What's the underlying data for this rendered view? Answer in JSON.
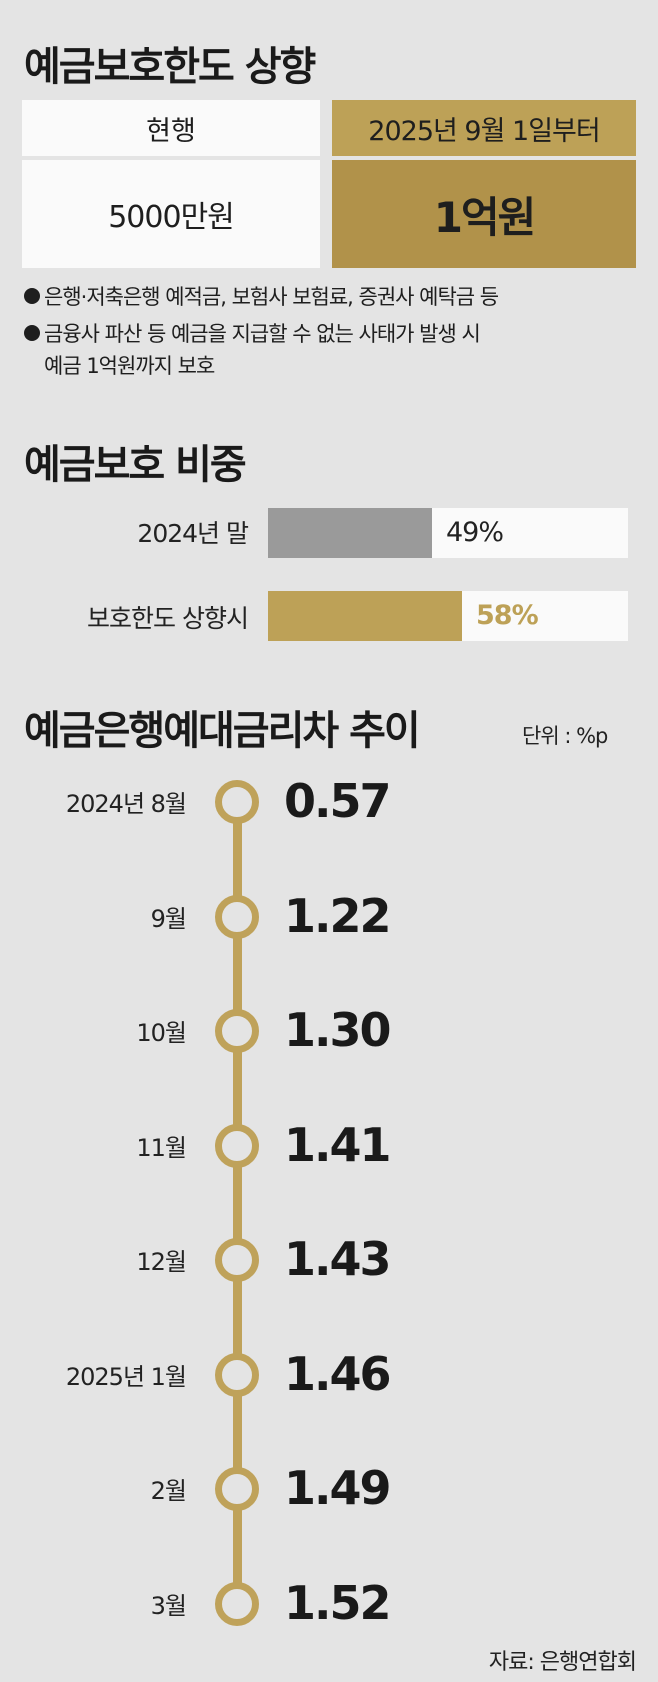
{
  "section1": {
    "title": "예금보호한도 상향",
    "current_header": "현행",
    "current_value": "5000만원",
    "new_header": "2025년 9월 1일부터",
    "new_value": "1억원",
    "notes": [
      "은행·저축은행 예적금, 보험사 보험료, 증권사 예탁금 등",
      "금융사 파산 등 예금을 지급할 수 없는 사태가 발생 시",
      "예금 1억원까지 보호"
    ]
  },
  "section2": {
    "title": "예금보호 비중"
  },
  "section3": {
    "title": "예금은행예대금리차 추이",
    "unit": "단위 : %p",
    "source": "자료: 은행연합회"
  },
  "colors": {
    "gold": "#bda157",
    "gray_bar": "#9a9a9a",
    "background": "#e4e4e4"
  },
  "chart_data": [
    {
      "type": "bar",
      "title": "예금보호 비중",
      "categories": [
        "2024년 말",
        "보호한도 상향시"
      ],
      "values": [
        49,
        58
      ],
      "value_labels": [
        "49%",
        "58%"
      ],
      "ylim": [
        0,
        100
      ],
      "colors": [
        "#9a9a9a",
        "#bda157"
      ]
    },
    {
      "type": "line",
      "title": "예금은행예대금리차 추이",
      "unit": "단위 : %p",
      "categories": [
        "2024년 8월",
        "9월",
        "10월",
        "11월",
        "12월",
        "2025년 1월",
        "2월",
        "3월"
      ],
      "values": [
        0.57,
        1.22,
        1.3,
        1.41,
        1.43,
        1.46,
        1.49,
        1.52
      ],
      "value_labels": [
        "0.57",
        "1.22",
        "1.30",
        "1.41",
        "1.43",
        "1.46",
        "1.49",
        "1.52"
      ]
    }
  ]
}
